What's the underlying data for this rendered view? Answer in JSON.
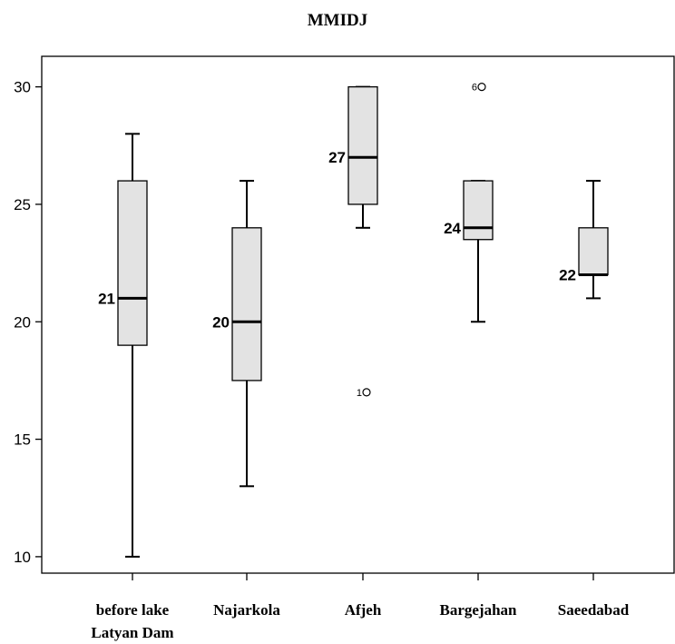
{
  "chart_data": {
    "type": "box",
    "title": "MMIDJ",
    "xlabel": "",
    "ylabel": "",
    "ylim": [
      9.3,
      31.3
    ],
    "yticks": [
      10,
      15,
      20,
      25,
      30
    ],
    "grid": false,
    "categories": [
      [
        "before lake",
        "Latyan Dam"
      ],
      [
        "Najarkola"
      ],
      [
        "Afjeh"
      ],
      [
        "Bargejahan"
      ],
      [
        "Saeedabad"
      ]
    ],
    "boxes": [
      {
        "whisker_low": 10,
        "q1": 19,
        "median": 21,
        "q3": 26,
        "whisker_high": 28,
        "median_label": "21",
        "outliers": []
      },
      {
        "whisker_low": 13,
        "q1": 17.5,
        "median": 20,
        "q3": 24,
        "whisker_high": 26,
        "median_label": "20",
        "outliers": []
      },
      {
        "whisker_low": 24,
        "q1": 25,
        "median": 27,
        "q3": 30,
        "whisker_high": 30,
        "median_label": "27",
        "outliers": [
          {
            "value": 17,
            "label": "1"
          }
        ]
      },
      {
        "whisker_low": 20,
        "q1": 23.5,
        "median": 24,
        "q3": 26,
        "whisker_high": 26,
        "median_label": "24",
        "outliers": [
          {
            "value": 30,
            "label": "6"
          }
        ]
      },
      {
        "whisker_low": 21,
        "q1": 22,
        "median": 22,
        "q3": 24,
        "whisker_high": 26,
        "median_label": "22",
        "outliers": []
      }
    ],
    "colors": {
      "box_fill": "#e3e3e3",
      "stroke": "#000000"
    }
  }
}
